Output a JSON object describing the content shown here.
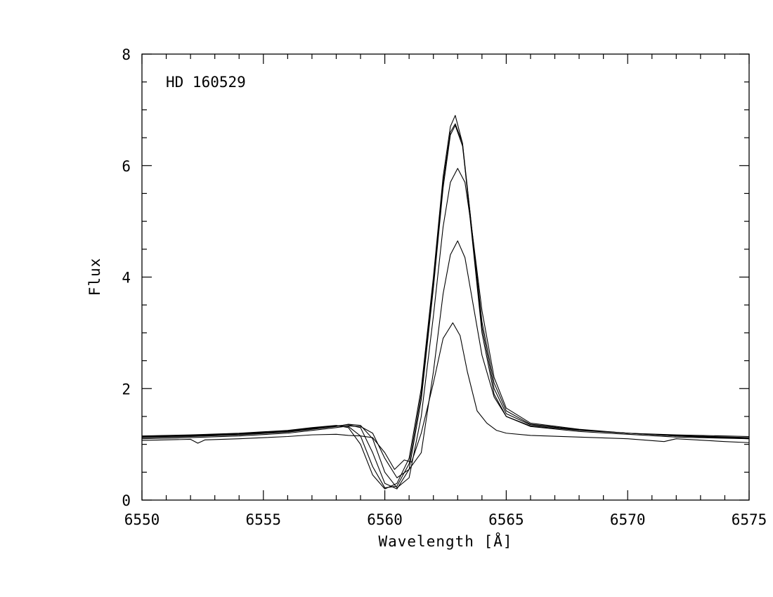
{
  "chart_data": {
    "type": "line",
    "annotation": "HD 160529",
    "xlabel": "Wavelength [Å]",
    "ylabel": "Flux",
    "xlim": [
      6550,
      6575
    ],
    "ylim": [
      0,
      8
    ],
    "x_major_ticks": [
      6550,
      6555,
      6560,
      6565,
      6570,
      6575
    ],
    "x_minor_step": 1,
    "y_major_ticks": [
      0,
      2,
      4,
      6,
      8
    ],
    "y_minor_step": 0.5,
    "x_tick_labels": [
      "6550",
      "6555",
      "6560",
      "6565",
      "6570",
      "6575"
    ],
    "y_tick_labels": [
      "0",
      "2",
      "4",
      "6",
      "8"
    ],
    "grid": false,
    "series": [
      {
        "x": [
          6550,
          6552,
          6554,
          6556,
          6557,
          6558,
          6558.5,
          6559,
          6559.5,
          6560,
          6560.5,
          6561,
          6561.5,
          6562,
          6562.4,
          6562.7,
          6562.9,
          6563.2,
          6563.5,
          6564,
          6564.5,
          6565,
          6566,
          6568,
          6570,
          6572,
          6575
        ],
        "y": [
          1.15,
          1.17,
          1.2,
          1.25,
          1.3,
          1.34,
          1.3,
          1.0,
          0.45,
          0.2,
          0.3,
          0.75,
          2.0,
          4.0,
          5.8,
          6.7,
          6.9,
          6.4,
          5.1,
          3.0,
          1.9,
          1.5,
          1.33,
          1.25,
          1.2,
          1.17,
          1.14
        ]
      },
      {
        "x": [
          6550,
          6552,
          6554,
          6556,
          6557,
          6558,
          6558.5,
          6559,
          6559.5,
          6560,
          6560.5,
          6561,
          6561.5,
          6562,
          6562.4,
          6562.7,
          6562.9,
          6563.2,
          6563.5,
          6564,
          6564.5,
          6565,
          6566,
          6568,
          6570,
          6572,
          6575
        ],
        "y": [
          1.14,
          1.16,
          1.19,
          1.24,
          1.29,
          1.33,
          1.32,
          1.15,
          0.6,
          0.22,
          0.25,
          0.65,
          1.9,
          3.9,
          5.7,
          6.6,
          6.75,
          6.4,
          5.2,
          3.1,
          2.0,
          1.55,
          1.35,
          1.26,
          1.2,
          1.16,
          1.12
        ]
      },
      {
        "x": [
          6550,
          6552,
          6554,
          6556,
          6557,
          6558,
          6558.5,
          6559,
          6559.5,
          6560,
          6560.5,
          6561,
          6561.5,
          6562,
          6562.4,
          6562.7,
          6562.9,
          6563.2,
          6563.5,
          6564,
          6564.5,
          6565,
          6566,
          6568,
          6570,
          6572,
          6575
        ],
        "y": [
          1.13,
          1.15,
          1.18,
          1.23,
          1.28,
          1.33,
          1.35,
          1.3,
          0.85,
          0.3,
          0.2,
          0.55,
          1.8,
          3.8,
          5.6,
          6.55,
          6.72,
          6.35,
          5.2,
          3.2,
          2.1,
          1.6,
          1.36,
          1.26,
          1.2,
          1.15,
          1.1
        ]
      },
      {
        "x": [
          6550,
          6552,
          6554,
          6556,
          6557,
          6558,
          6558.5,
          6559,
          6559.5,
          6560,
          6560.5,
          6561,
          6561.5,
          6562,
          6562.4,
          6562.7,
          6563,
          6563.3,
          6563.6,
          6564,
          6564.5,
          6565,
          6566,
          6568,
          6570,
          6572,
          6575
        ],
        "y": [
          1.12,
          1.14,
          1.17,
          1.22,
          1.27,
          1.32,
          1.36,
          1.34,
          1.1,
          0.5,
          0.22,
          0.4,
          1.5,
          3.3,
          4.9,
          5.7,
          5.95,
          5.7,
          4.8,
          3.4,
          2.2,
          1.65,
          1.38,
          1.27,
          1.2,
          1.15,
          1.11
        ]
      },
      {
        "x": [
          6550,
          6552,
          6554,
          6556,
          6557,
          6558,
          6558.5,
          6559,
          6559.5,
          6560,
          6560.5,
          6561,
          6561.5,
          6562,
          6562.4,
          6562.7,
          6563,
          6563.3,
          6563.6,
          6564,
          6564.5,
          6565,
          6566,
          6568,
          6570,
          6572,
          6575
        ],
        "y": [
          1.1,
          1.12,
          1.15,
          1.2,
          1.25,
          1.3,
          1.33,
          1.32,
          1.2,
          0.75,
          0.4,
          0.55,
          0.85,
          2.3,
          3.7,
          4.4,
          4.65,
          4.35,
          3.6,
          2.6,
          1.85,
          1.5,
          1.32,
          1.23,
          1.18,
          1.13,
          1.1
        ]
      },
      {
        "x": [
          6550,
          6552,
          6552.3,
          6552.6,
          6554,
          6556,
          6557,
          6558,
          6558.5,
          6559,
          6559.5,
          6560,
          6560.4,
          6560.8,
          6561.1,
          6561.5,
          6562,
          6562.4,
          6562.8,
          6563.1,
          6563.4,
          6563.8,
          6564.2,
          6564.6,
          6565,
          6566,
          6568,
          6570,
          6571.5,
          6572,
          6574,
          6575
        ],
        "y": [
          1.07,
          1.09,
          1.02,
          1.08,
          1.1,
          1.14,
          1.17,
          1.18,
          1.16,
          1.15,
          1.12,
          0.85,
          0.55,
          0.72,
          0.68,
          1.2,
          2.1,
          2.9,
          3.18,
          2.95,
          2.3,
          1.6,
          1.38,
          1.25,
          1.2,
          1.16,
          1.13,
          1.1,
          1.05,
          1.1,
          1.05,
          1.03
        ]
      }
    ]
  }
}
